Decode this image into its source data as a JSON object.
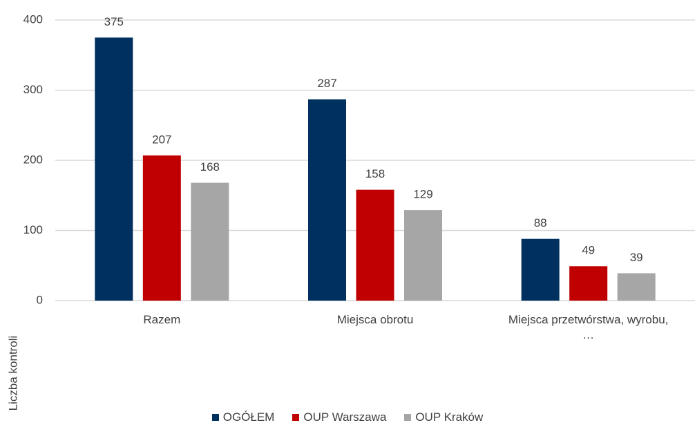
{
  "chart_data": {
    "type": "bar",
    "y_label": "Liczba kontroli",
    "categories": [
      "Razem",
      "Miejsca obrotu",
      "Miejsca przetwórstwa, wyrobu, …"
    ],
    "series": [
      {
        "name": "OGÓŁEM",
        "color": "#00305f",
        "values": [
          375,
          287,
          88
        ]
      },
      {
        "name": "OUP Warszawa",
        "color": "#c00000",
        "values": [
          207,
          158,
          49
        ]
      },
      {
        "name": "OUP Kraków",
        "color": "#a6a6a6",
        "values": [
          168,
          129,
          39
        ]
      }
    ],
    "ylim": [
      0,
      400
    ],
    "yticks": [
      0,
      100,
      200,
      300,
      400
    ],
    "grid": true
  }
}
